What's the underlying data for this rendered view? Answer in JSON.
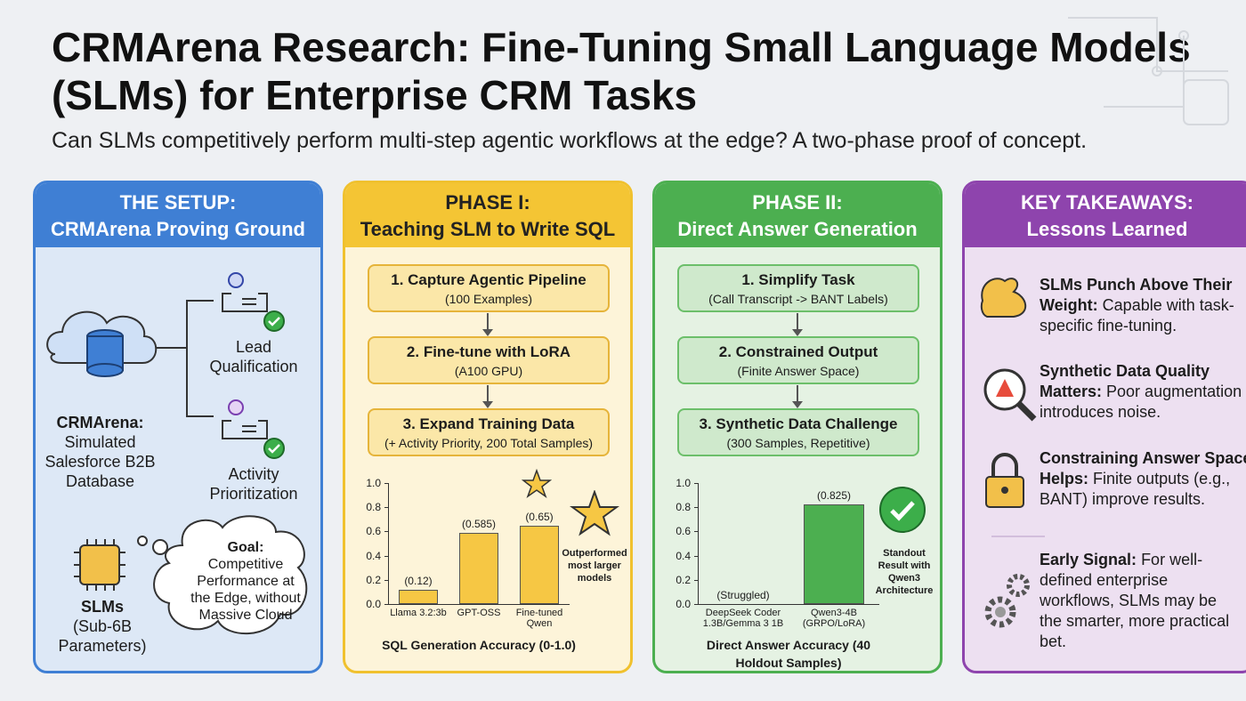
{
  "title": "CRMArena Research: Fine-Tuning Small Language Models (SLMs) for Enterprise CRM Tasks",
  "subtitle": "Can SLMs competitively perform multi-step agentic workflows at the edge? A two-phase proof of concept.",
  "setup": {
    "heading": "THE SETUP:",
    "subheading": "CRMArena Proving Ground",
    "tasks": [
      "Lead Qualification",
      "Activity Prioritization"
    ],
    "database": {
      "name": "CRMArena:",
      "description": "Simulated Salesforce B2B Database"
    },
    "models": {
      "name": "SLMs",
      "description": "(Sub-6B Parameters)"
    },
    "goal": {
      "label": "Goal:",
      "text": "Competitive Performance at the Edge, without Massive Cloud"
    }
  },
  "phase1": {
    "heading": "PHASE I:",
    "subheading": "Teaching SLM to Write SQL",
    "steps": [
      {
        "title": "1. Capture Agentic Pipeline",
        "detail": "(100 Examples)"
      },
      {
        "title": "2. Fine-tune with LoRA",
        "detail": "(A100 GPU)"
      },
      {
        "title": "3. Expand Training Data",
        "detail": "(+ Activity Priority, 200 Total Samples)"
      }
    ],
    "chart": {
      "type": "bar",
      "title": "SQL Generation Accuracy (0-1.0)",
      "categories": [
        "Llama 3.2:3b",
        "GPT-OSS",
        "Fine-tuned Qwen"
      ],
      "values": [
        0.12,
        0.585,
        0.65
      ],
      "value_labels": [
        "(0.12)",
        "(0.585)",
        "(0.65)"
      ],
      "color": "#f6c744",
      "ylim": [
        0,
        1
      ],
      "yticks": [
        {
          "value": 0,
          "label": "0.0"
        },
        0.2,
        0.4,
        0.6,
        0.8,
        {
          "value": 1,
          "label": "1.0"
        }
      ],
      "annotation": "Outperformed most larger models"
    }
  },
  "phase2": {
    "heading": "PHASE II:",
    "subheading": "Direct Answer Generation",
    "steps": [
      {
        "title": "1. Simplify Task",
        "detail": "(Call Transcript -> BANT Labels)"
      },
      {
        "title": "2. Constrained Output",
        "detail": "(Finite Answer Space)"
      },
      {
        "title": "3. Synthetic Data Challenge",
        "detail": "(300 Samples, Repetitive)"
      }
    ],
    "chart": {
      "type": "bar",
      "title": "Direct Answer Accuracy (40 Holdout Samples)",
      "categories": [
        "DeepSeek Coder 1.3B/Gemma 3 1B",
        "Qwen3-4B (GRPO/LoRA)"
      ],
      "values": [
        null,
        0.825
      ],
      "value_labels": [
        "(Struggled)",
        "(0.825)"
      ],
      "color": "#4caf50",
      "ylim": [
        0,
        1
      ],
      "yticks": [
        {
          "value": 0,
          "label": "0.0"
        },
        0.2,
        0.4,
        0.6,
        0.8,
        {
          "value": 1,
          "label": "1.0"
        }
      ],
      "annotation": "Standout Result with Qwen3 Architecture"
    }
  },
  "takeaways": {
    "heading": "KEY TAKEAWAYS:",
    "subheading": "Lessons Learned",
    "items": [
      {
        "lead": "SLMs Punch Above Their Weight:",
        "text": "Capable with task-specific fine-tuning."
      },
      {
        "lead": "Synthetic Data Quality Matters:",
        "text": "Poor augmentation introduces noise."
      },
      {
        "lead": "Constraining Answer Space Helps:",
        "text": "Finite outputs (e.g., BANT) improve results."
      },
      {
        "lead": "Early Signal:",
        "text": "For well-defined enterprise workflows, SLMs may be the smarter, more practical bet."
      }
    ]
  }
}
